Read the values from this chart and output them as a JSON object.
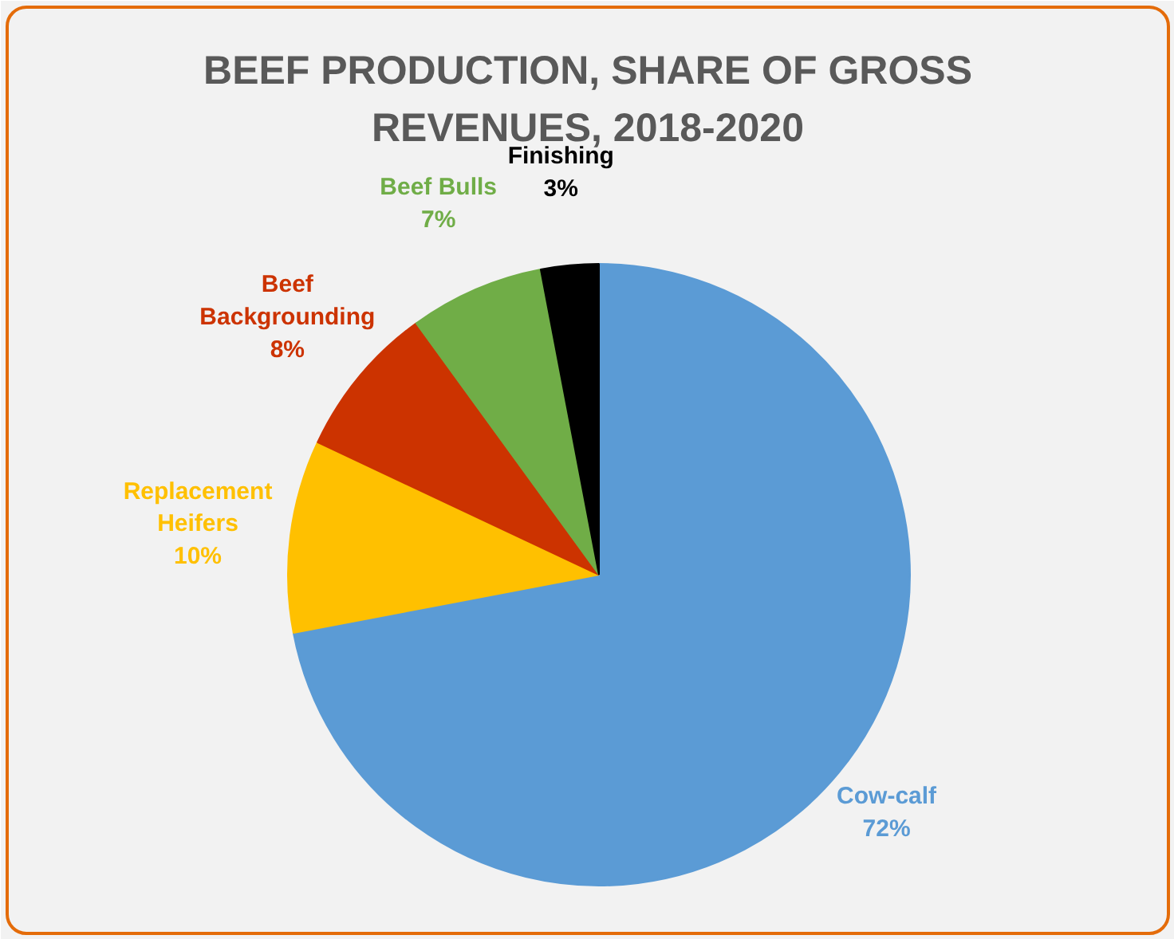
{
  "chart_data": {
    "type": "pie",
    "title": "BEEF PRODUCTION, SHARE OF GROSS REVENUES, 2018-2020",
    "categories": [
      "Cow-calf",
      "Replacement Heifers",
      "Beef Backgrounding",
      "Beef Bulls",
      "Finishing"
    ],
    "values": [
      72,
      10,
      8,
      7,
      3
    ],
    "value_labels": [
      "72%",
      "10%",
      "8%",
      "7%",
      "3%"
    ],
    "colors": [
      "#5b9bd5",
      "#ffc000",
      "#cc3300",
      "#70ad47",
      "#000000"
    ],
    "legend": false
  }
}
